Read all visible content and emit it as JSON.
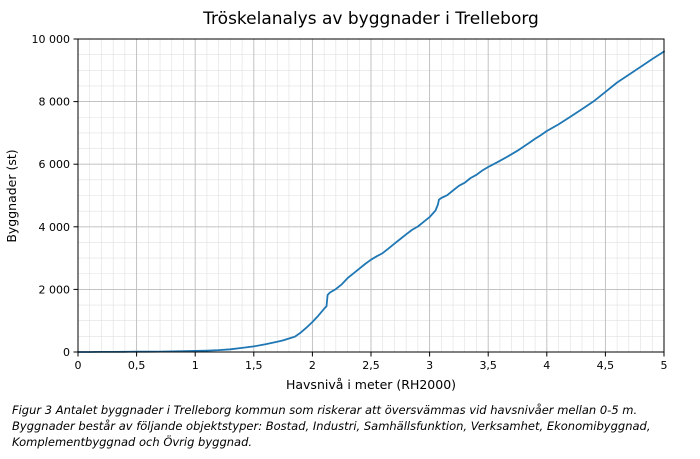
{
  "chart_data": {
    "type": "line",
    "title": "Tröskelanalys av byggnader i Trelleborg",
    "xlabel": "Havsnivå i meter (RH2000)",
    "ylabel": "Byggnader (st)",
    "xlim": [
      0,
      5
    ],
    "ylim": [
      0,
      10000
    ],
    "grid": true,
    "legend_position": "none",
    "xticks": [
      {
        "v": 0,
        "label": "0"
      },
      {
        "v": 0.5,
        "label": "0,5"
      },
      {
        "v": 1,
        "label": "1"
      },
      {
        "v": 1.5,
        "label": "1,5"
      },
      {
        "v": 2,
        "label": "2"
      },
      {
        "v": 2.5,
        "label": "2,5"
      },
      {
        "v": 3,
        "label": "3"
      },
      {
        "v": 3.5,
        "label": "3,5"
      },
      {
        "v": 4,
        "label": "4"
      },
      {
        "v": 4.5,
        "label": "4,5"
      },
      {
        "v": 5,
        "label": "5"
      }
    ],
    "yticks": [
      {
        "v": 0,
        "label": "0"
      },
      {
        "v": 2000,
        "label": "2 000"
      },
      {
        "v": 4000,
        "label": "4 000"
      },
      {
        "v": 6000,
        "label": "6 000"
      },
      {
        "v": 8000,
        "label": "8 000"
      },
      {
        "v": 10000,
        "label": "10 000"
      }
    ],
    "minor_x_step": 0.1,
    "minor_y_step": 500,
    "colors": {
      "line": "#1f77b4",
      "grid_major": "#bdbdbd",
      "grid_minor": "#e0e0e0",
      "axis": "#000000",
      "background": "#ffffff"
    },
    "series": [
      {
        "name": "Byggnader som riskerar att översvämmas",
        "points": [
          [
            0,
            0
          ],
          [
            0.1,
            0
          ],
          [
            0.2,
            2
          ],
          [
            0.3,
            3
          ],
          [
            0.4,
            5
          ],
          [
            0.5,
            8
          ],
          [
            0.6,
            11
          ],
          [
            0.7,
            14
          ],
          [
            0.8,
            18
          ],
          [
            0.9,
            25
          ],
          [
            1.0,
            35
          ],
          [
            1.1,
            45
          ],
          [
            1.2,
            62
          ],
          [
            1.3,
            85
          ],
          [
            1.4,
            130
          ],
          [
            1.5,
            180
          ],
          [
            1.6,
            250
          ],
          [
            1.7,
            330
          ],
          [
            1.75,
            370
          ],
          [
            1.8,
            430
          ],
          [
            1.85,
            490
          ],
          [
            1.9,
            620
          ],
          [
            1.95,
            780
          ],
          [
            2.0,
            960
          ],
          [
            2.05,
            1160
          ],
          [
            2.1,
            1380
          ],
          [
            2.12,
            1460
          ],
          [
            2.13,
            1820
          ],
          [
            2.15,
            1900
          ],
          [
            2.2,
            2010
          ],
          [
            2.25,
            2160
          ],
          [
            2.3,
            2360
          ],
          [
            2.35,
            2510
          ],
          [
            2.4,
            2660
          ],
          [
            2.45,
            2810
          ],
          [
            2.5,
            2950
          ],
          [
            2.55,
            3060
          ],
          [
            2.6,
            3160
          ],
          [
            2.65,
            3310
          ],
          [
            2.7,
            3460
          ],
          [
            2.75,
            3610
          ],
          [
            2.8,
            3760
          ],
          [
            2.85,
            3900
          ],
          [
            2.9,
            4010
          ],
          [
            2.95,
            4160
          ],
          [
            3.0,
            4310
          ],
          [
            3.05,
            4520
          ],
          [
            3.07,
            4700
          ],
          [
            3.08,
            4870
          ],
          [
            3.1,
            4920
          ],
          [
            3.15,
            5010
          ],
          [
            3.2,
            5160
          ],
          [
            3.25,
            5310
          ],
          [
            3.3,
            5410
          ],
          [
            3.35,
            5560
          ],
          [
            3.4,
            5660
          ],
          [
            3.45,
            5800
          ],
          [
            3.5,
            5910
          ],
          [
            3.55,
            6010
          ],
          [
            3.6,
            6110
          ],
          [
            3.65,
            6210
          ],
          [
            3.7,
            6320
          ],
          [
            3.75,
            6430
          ],
          [
            3.8,
            6560
          ],
          [
            3.85,
            6680
          ],
          [
            3.9,
            6810
          ],
          [
            3.95,
            6930
          ],
          [
            4.0,
            7060
          ],
          [
            4.1,
            7270
          ],
          [
            4.2,
            7510
          ],
          [
            4.3,
            7760
          ],
          [
            4.4,
            8010
          ],
          [
            4.5,
            8310
          ],
          [
            4.6,
            8610
          ],
          [
            4.7,
            8860
          ],
          [
            4.8,
            9110
          ],
          [
            4.9,
            9360
          ],
          [
            5.0,
            9600
          ]
        ]
      }
    ]
  },
  "caption": "Figur 3 Antalet byggnader i Trelleborg kommun som riskerar att översvämmas vid havsnivåer mellan 0-5 m. Byggnader består av följande objektstyper: Bostad, Industri, Samhällsfunktion, Verksamhet, Ekonomibyggnad, Komplementbyggnad och Övrig byggnad."
}
